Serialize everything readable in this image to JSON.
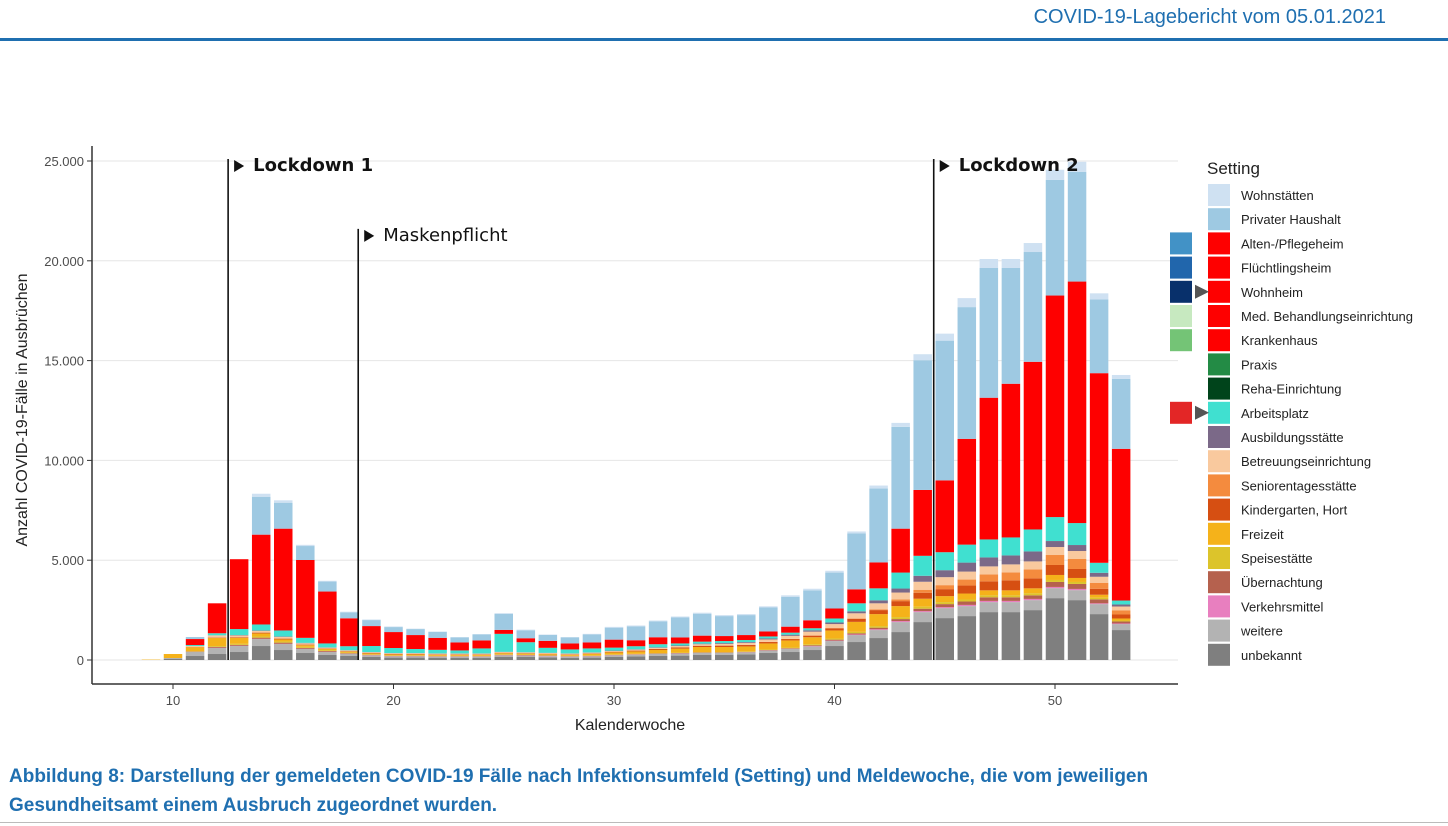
{
  "header": {
    "report_title": "COVID-19-Lagebericht vom 05.01.2021"
  },
  "caption": {
    "line1": "Abbildung 8: Darstellung der gemeldeten COVID-19 Fälle nach Infektionsumfeld (Setting) und Meldewoche, die vom jeweiligen",
    "line2": "Gesundheitsamt einem Ausbruch zugeordnet wurden."
  },
  "chart_data": {
    "type": "bar",
    "stacked": true,
    "xlabel": "Kalenderwoche",
    "ylabel": "Anzahl COVID-19-Fälle in Ausbrüchen",
    "xlim": [
      6,
      56
    ],
    "ylim": [
      0,
      25000
    ],
    "x_ticks": [
      10,
      20,
      30,
      40,
      50
    ],
    "y_ticks": [
      0,
      5000,
      10000,
      15000,
      20000,
      25000
    ],
    "y_tick_labels": [
      "0",
      "5.000",
      "10.000",
      "15.000",
      "20.000",
      "25.000"
    ],
    "grid": true,
    "legend_title": "Setting",
    "legend_position": "right",
    "weeks": [
      9,
      10,
      11,
      12,
      13,
      14,
      15,
      16,
      17,
      18,
      19,
      20,
      21,
      22,
      23,
      24,
      25,
      26,
      27,
      28,
      29,
      30,
      31,
      32,
      33,
      34,
      35,
      36,
      37,
      38,
      39,
      40,
      41,
      42,
      43,
      44,
      45,
      46,
      47,
      48,
      49,
      50,
      51,
      52,
      53
    ],
    "series": [
      {
        "name": "unbekannt",
        "color": "#7f7f7f",
        "values": [
          0,
          50,
          200,
          300,
          400,
          700,
          500,
          350,
          250,
          200,
          150,
          120,
          120,
          100,
          100,
          100,
          150,
          150,
          130,
          100,
          120,
          150,
          180,
          200,
          220,
          250,
          250,
          280,
          350,
          400,
          500,
          700,
          900,
          1100,
          1400,
          1900,
          2100,
          2200,
          2400,
          2400,
          2500,
          3100,
          3000,
          2300,
          1500
        ]
      },
      {
        "name": "weitere",
        "color": "#b3b3b3",
        "values": [
          0,
          50,
          200,
          300,
          300,
          350,
          300,
          200,
          150,
          100,
          80,
          60,
          60,
          60,
          60,
          60,
          80,
          70,
          60,
          60,
          60,
          80,
          80,
          100,
          100,
          100,
          100,
          100,
          120,
          150,
          180,
          250,
          350,
          400,
          500,
          500,
          500,
          500,
          500,
          500,
          500,
          500,
          500,
          500,
          300
        ]
      },
      {
        "name": "Verkehrsmittel",
        "color": "#e87fbf",
        "values": [
          0,
          0,
          0,
          10,
          10,
          10,
          10,
          10,
          10,
          10,
          10,
          10,
          10,
          10,
          10,
          10,
          10,
          10,
          10,
          10,
          10,
          10,
          10,
          10,
          10,
          10,
          10,
          10,
          10,
          10,
          20,
          20,
          30,
          40,
          50,
          50,
          50,
          60,
          60,
          60,
          60,
          60,
          60,
          40,
          30
        ]
      },
      {
        "name": "Übernachtung",
        "color": "#b5614e",
        "values": [
          0,
          0,
          20,
          50,
          50,
          60,
          60,
          50,
          40,
          30,
          20,
          20,
          20,
          20,
          20,
          20,
          20,
          20,
          20,
          20,
          20,
          20,
          20,
          20,
          20,
          20,
          20,
          20,
          20,
          30,
          40,
          50,
          60,
          80,
          100,
          120,
          150,
          170,
          180,
          180,
          180,
          250,
          250,
          200,
          100
        ]
      },
      {
        "name": "Speisestätte",
        "color": "#dcc42b",
        "values": [
          0,
          0,
          20,
          40,
          50,
          60,
          60,
          50,
          40,
          30,
          20,
          20,
          20,
          20,
          20,
          20,
          20,
          20,
          20,
          20,
          20,
          20,
          20,
          20,
          20,
          20,
          20,
          20,
          30,
          40,
          50,
          60,
          70,
          80,
          100,
          100,
          100,
          100,
          100,
          100,
          100,
          100,
          100,
          80,
          50
        ]
      },
      {
        "name": "Freizeit",
        "color": "#f5b21a",
        "values": [
          20,
          200,
          200,
          400,
          300,
          150,
          100,
          80,
          60,
          50,
          50,
          50,
          50,
          50,
          50,
          50,
          60,
          50,
          50,
          50,
          80,
          100,
          120,
          150,
          200,
          250,
          250,
          250,
          300,
          350,
          350,
          400,
          500,
          600,
          550,
          400,
          300,
          300,
          250,
          250,
          250,
          250,
          200,
          150,
          100
        ]
      },
      {
        "name": "Kindergarten, Hort",
        "color": "#d64f12",
        "values": [
          0,
          0,
          10,
          20,
          30,
          40,
          40,
          30,
          20,
          20,
          20,
          20,
          20,
          20,
          20,
          20,
          20,
          20,
          20,
          20,
          20,
          30,
          40,
          50,
          60,
          60,
          70,
          70,
          70,
          70,
          80,
          100,
          150,
          200,
          250,
          300,
          350,
          400,
          450,
          500,
          500,
          500,
          450,
          300,
          200
        ]
      },
      {
        "name": "Seniorentagesstätte",
        "color": "#f48b3e",
        "values": [
          0,
          0,
          0,
          10,
          10,
          10,
          10,
          10,
          10,
          10,
          10,
          10,
          10,
          10,
          10,
          10,
          10,
          10,
          10,
          10,
          10,
          10,
          10,
          10,
          10,
          10,
          10,
          10,
          10,
          10,
          20,
          20,
          30,
          40,
          80,
          150,
          200,
          300,
          350,
          400,
          450,
          500,
          500,
          300,
          200
        ]
      },
      {
        "name": "Betreuungseinrichtung",
        "color": "#f9c99e",
        "values": [
          0,
          0,
          50,
          100,
          80,
          80,
          80,
          60,
          40,
          30,
          30,
          30,
          30,
          30,
          30,
          30,
          30,
          30,
          30,
          30,
          30,
          30,
          40,
          50,
          60,
          70,
          80,
          100,
          120,
          150,
          180,
          200,
          250,
          300,
          350,
          400,
          400,
          400,
          400,
          400,
          400,
          400,
          400,
          300,
          200
        ]
      },
      {
        "name": "Ausbildungsstätte",
        "color": "#7b6988",
        "values": [
          0,
          0,
          0,
          10,
          20,
          20,
          20,
          20,
          10,
          10,
          10,
          10,
          10,
          10,
          10,
          10,
          10,
          10,
          10,
          10,
          10,
          20,
          20,
          30,
          30,
          30,
          40,
          40,
          50,
          60,
          70,
          80,
          100,
          150,
          200,
          300,
          350,
          450,
          450,
          450,
          500,
          300,
          300,
          200,
          100
        ]
      },
      {
        "name": "Arbeitsplatz",
        "color": "#40e0d0",
        "values": [
          0,
          0,
          50,
          100,
          300,
          300,
          300,
          250,
          200,
          200,
          300,
          250,
          200,
          180,
          150,
          250,
          900,
          500,
          250,
          200,
          200,
          150,
          150,
          150,
          100,
          100,
          100,
          100,
          100,
          100,
          100,
          200,
          400,
          600,
          800,
          1000,
          900,
          900,
          900,
          900,
          1100,
          1200,
          1100,
          500,
          200
        ]
      },
      {
        "name": "Krankenhaus",
        "color": "#fe0000",
        "values": [
          0,
          0,
          300,
          1500,
          3500,
          4500,
          5100,
          3900,
          2600,
          1400,
          1000,
          800,
          700,
          600,
          400,
          400,
          200,
          200,
          350,
          300,
          300,
          400,
          300,
          350,
          300,
          300,
          250,
          250,
          250,
          300,
          400,
          500,
          700,
          1300,
          2200,
          3300,
          3600,
          5300,
          7100,
          7700,
          8400,
          11100,
          12100,
          9500,
          7600
        ]
      },
      {
        "name": "Privater Haushalt",
        "color": "#9ec9e2",
        "values": [
          0,
          0,
          100,
          0,
          0,
          1900,
          1300,
          700,
          500,
          300,
          300,
          250,
          300,
          300,
          250,
          300,
          800,
          400,
          300,
          300,
          400,
          600,
          700,
          800,
          1000,
          1100,
          1000,
          1000,
          1200,
          1500,
          1500,
          1800,
          2800,
          3700,
          5100,
          6500,
          7000,
          6600,
          6500,
          5800,
          5500,
          5800,
          5500,
          3700,
          3500
        ]
      },
      {
        "name": "Wohnstätten",
        "color": "#cfe1f2",
        "values": [
          0,
          0,
          0,
          0,
          0,
          150,
          120,
          60,
          40,
          30,
          30,
          30,
          20,
          20,
          20,
          20,
          40,
          30,
          20,
          20,
          30,
          40,
          40,
          40,
          50,
          50,
          50,
          50,
          60,
          70,
          80,
          90,
          100,
          150,
          200,
          300,
          350,
          450,
          450,
          450,
          450,
          500,
          500,
          300,
          200
        ]
      },
      {
        "name": "Alten-/Pflegeheim",
        "color": "#fe0000",
        "values": []
      },
      {
        "name": "Flüchtlingsheim",
        "color": "#fe0000",
        "values": []
      },
      {
        "name": "Wohnheim",
        "color": "#fe0000",
        "values": []
      },
      {
        "name": "Med. Behandlungseinrichtung",
        "color": "#fe0000",
        "values": []
      },
      {
        "name": "Praxis",
        "color": "#238b45",
        "values": []
      },
      {
        "name": "Reha-Einrichtung",
        "color": "#00441b",
        "values": []
      }
    ],
    "legend": [
      {
        "label": "Wohnstätten",
        "color": "#cfe1f2"
      },
      {
        "label": "Privater Haushalt",
        "color": "#9ec9e2"
      },
      {
        "label": "Alten-/Pflegeheim",
        "color": "#fe0000"
      },
      {
        "label": "Flüchtlingsheim",
        "color": "#fe0000"
      },
      {
        "label": "Wohnheim",
        "color": "#fe0000"
      },
      {
        "label": "Med. Behandlungseinrichtung",
        "color": "#fe0000"
      },
      {
        "label": "Krankenhaus",
        "color": "#fe0000"
      },
      {
        "label": "Praxis",
        "color": "#238b45"
      },
      {
        "label": "Reha-Einrichtung",
        "color": "#00441b"
      },
      {
        "label": "Arbeitsplatz",
        "color": "#40e0d0"
      },
      {
        "label": "Ausbildungsstätte",
        "color": "#7b6988"
      },
      {
        "label": "Betreuungseinrichtung",
        "color": "#f9c99e"
      },
      {
        "label": "Seniorentagesstätte",
        "color": "#f48b3e"
      },
      {
        "label": "Kindergarten, Hort",
        "color": "#d64f12"
      },
      {
        "label": "Freizeit",
        "color": "#f5b21a"
      },
      {
        "label": "Speisestätte",
        "color": "#dcc42b"
      },
      {
        "label": "Übernachtung",
        "color": "#b5614e"
      },
      {
        "label": "Verkehrsmittel",
        "color": "#e87fbf"
      },
      {
        "label": "weitere",
        "color": "#b3b3b3"
      },
      {
        "label": "unbekannt",
        "color": "#7f7f7f"
      }
    ],
    "original_colors": [
      {
        "for": "Alten-/Pflegeheim",
        "color": "#4292c6"
      },
      {
        "for": "Flüchtlingsheim",
        "color": "#2166ac"
      },
      {
        "for": "Wohnheim",
        "color": "#08306b"
      },
      {
        "for": "Med. Behandlungseinrichtung",
        "color": "#c7e9c0"
      },
      {
        "for": "Krankenhaus",
        "color": "#74c476"
      },
      {
        "for": "Arbeitsplatz",
        "color": "#e32626"
      }
    ],
    "annotations": [
      {
        "label": "Lockdown 1",
        "x": 12.5,
        "y_top": 24900,
        "bold": true
      },
      {
        "label": "Maskenpflicht",
        "x": 18.4,
        "y_top": 21400,
        "bold": false
      },
      {
        "label": "Lockdown 2",
        "x": 44.5,
        "y_top": 24900,
        "bold": true
      }
    ]
  }
}
